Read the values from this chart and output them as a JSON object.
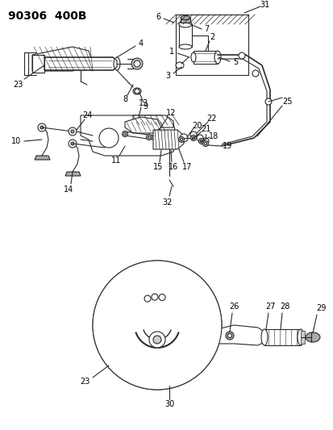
{
  "title": "90306  400B",
  "bg": "#ffffff",
  "lc": "#2a2a2a",
  "tc": "#000000",
  "fig_w": 4.14,
  "fig_h": 5.33,
  "dpi": 100
}
